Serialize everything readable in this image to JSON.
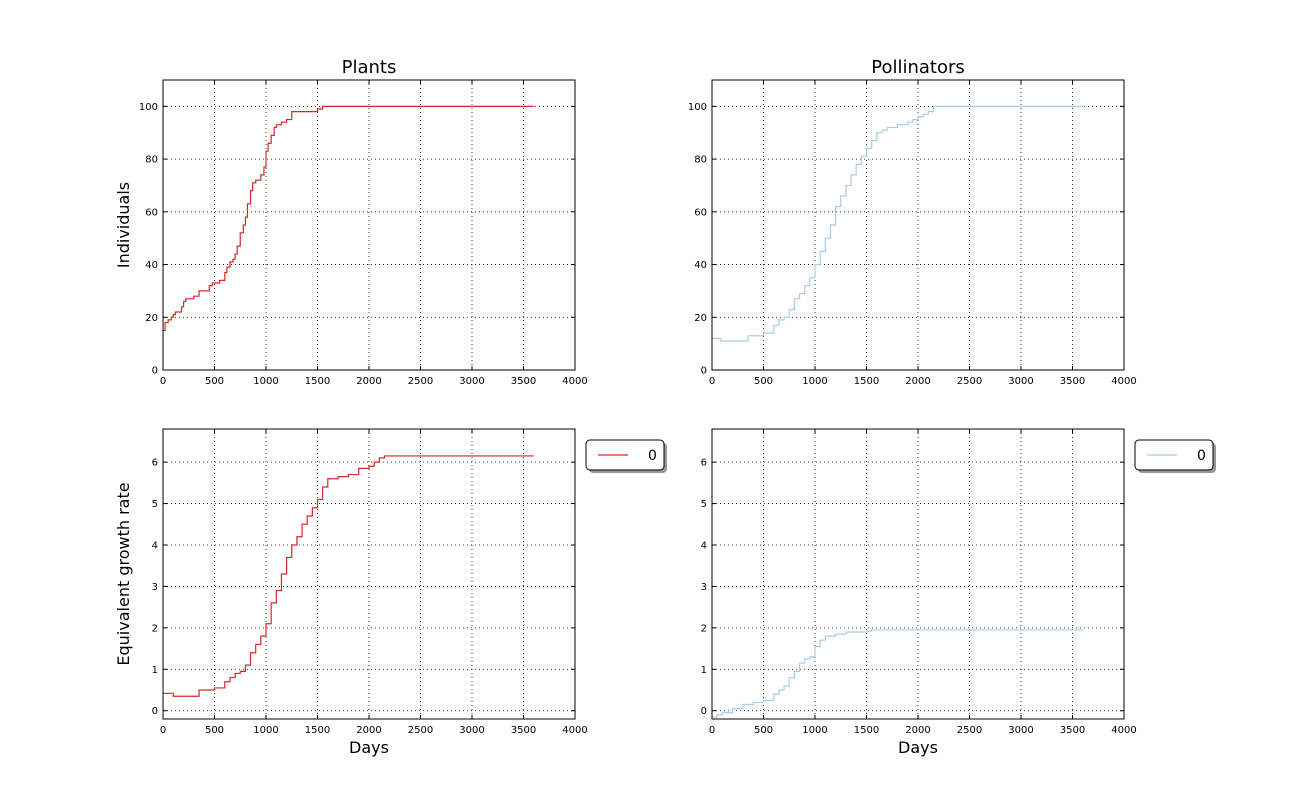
{
  "chart_data": [
    {
      "type": "line",
      "title": "Plants",
      "xlabel": "",
      "ylabel": "Individuals",
      "xlim": [
        0,
        4000
      ],
      "ylim": [
        0,
        110
      ],
      "xticks": [
        0,
        500,
        1000,
        1500,
        2000,
        2500,
        3000,
        3500,
        4000
      ],
      "yticks": [
        0,
        20,
        40,
        60,
        80,
        100
      ],
      "grid": true,
      "legend": null,
      "series": [
        {
          "color": "#d62728",
          "x": [
            0,
            20,
            50,
            80,
            100,
            120,
            150,
            180,
            200,
            220,
            250,
            300,
            350,
            400,
            450,
            480,
            500,
            550,
            600,
            620,
            650,
            680,
            700,
            720,
            750,
            780,
            800,
            820,
            850,
            870,
            900,
            950,
            980,
            1000,
            1020,
            1050,
            1080,
            1100,
            1150,
            1200,
            1250,
            1300,
            1400,
            1450,
            1500,
            1550,
            1600,
            2000,
            2500,
            3000,
            3600
          ],
          "y": [
            15,
            18,
            19,
            20,
            21,
            22,
            22,
            24,
            26,
            27,
            27,
            28,
            30,
            30,
            32,
            33,
            33,
            34,
            37,
            39,
            41,
            42,
            44,
            47,
            52,
            55,
            58,
            63,
            68,
            71,
            72,
            74,
            77,
            83,
            86,
            89,
            92,
            93,
            94,
            95,
            98,
            98,
            98,
            98,
            99,
            100,
            100,
            100,
            100,
            100,
            100
          ]
        }
      ]
    },
    {
      "type": "line",
      "title": "Pollinators",
      "xlabel": "",
      "ylabel": "",
      "xlim": [
        0,
        4000
      ],
      "ylim": [
        0,
        110
      ],
      "xticks": [
        0,
        500,
        1000,
        1500,
        2000,
        2500,
        3000,
        3500,
        4000
      ],
      "yticks": [
        0,
        20,
        40,
        60,
        80,
        100
      ],
      "grid": true,
      "legend": null,
      "series": [
        {
          "color": "#a6cee3",
          "x": [
            0,
            80,
            150,
            200,
            300,
            350,
            400,
            500,
            600,
            650,
            700,
            750,
            800,
            850,
            900,
            950,
            1000,
            1050,
            1100,
            1150,
            1200,
            1250,
            1300,
            1350,
            1400,
            1450,
            1500,
            1550,
            1600,
            1650,
            1700,
            1800,
            1900,
            1950,
            2000,
            2050,
            2100,
            2150,
            2500,
            3000,
            3600
          ],
          "y": [
            12,
            11,
            11,
            11,
            11,
            13,
            13,
            14,
            17,
            19,
            20,
            23,
            27,
            29,
            32,
            35,
            40,
            45,
            50,
            55,
            62,
            66,
            70,
            74,
            78,
            81,
            84,
            87,
            90,
            91,
            92,
            93,
            94,
            95,
            96,
            97,
            98,
            100,
            100,
            100,
            100
          ]
        }
      ]
    },
    {
      "type": "line",
      "title": "",
      "xlabel": "Days",
      "ylabel": "Equivalent growth rate",
      "xlim": [
        0,
        4000
      ],
      "ylim": [
        -0.2,
        6.8
      ],
      "xticks": [
        0,
        500,
        1000,
        1500,
        2000,
        2500,
        3000,
        3500,
        4000
      ],
      "yticks": [
        0,
        1,
        2,
        3,
        4,
        5,
        6
      ],
      "grid": true,
      "legend": {
        "position": "outside-right-top",
        "entries": [
          "0"
        ]
      },
      "series": [
        {
          "name": "0",
          "color": "#d62728",
          "x": [
            0,
            80,
            100,
            350,
            500,
            600,
            650,
            700,
            750,
            800,
            850,
            900,
            950,
            1000,
            1050,
            1100,
            1150,
            1200,
            1250,
            1300,
            1350,
            1400,
            1450,
            1500,
            1550,
            1600,
            1700,
            1800,
            1900,
            2000,
            2050,
            2100,
            2150,
            2500,
            3000,
            3600
          ],
          "y": [
            0.42,
            0.42,
            0.35,
            0.5,
            0.55,
            0.7,
            0.8,
            0.9,
            0.95,
            1.1,
            1.4,
            1.6,
            1.8,
            2.1,
            2.6,
            2.9,
            3.3,
            3.7,
            4.0,
            4.2,
            4.5,
            4.7,
            4.9,
            5.1,
            5.4,
            5.6,
            5.65,
            5.7,
            5.85,
            5.9,
            6.0,
            6.1,
            6.15,
            6.15,
            6.15,
            6.15
          ]
        }
      ]
    },
    {
      "type": "line",
      "title": "",
      "xlabel": "Days",
      "ylabel": "",
      "xlim": [
        0,
        4000
      ],
      "ylim": [
        -0.2,
        6.8
      ],
      "xticks": [
        0,
        500,
        1000,
        1500,
        2000,
        2500,
        3000,
        3500,
        4000
      ],
      "yticks": [
        0,
        1,
        2,
        3,
        4,
        5,
        6
      ],
      "grid": true,
      "legend": {
        "position": "outside-right-top",
        "entries": [
          "0"
        ]
      },
      "series": [
        {
          "name": "0",
          "color": "#a6cee3",
          "x": [
            0,
            50,
            100,
            200,
            300,
            400,
            500,
            600,
            650,
            700,
            750,
            800,
            850,
            900,
            950,
            1000,
            1050,
            1100,
            1200,
            1300,
            1400,
            1500,
            1550,
            2000,
            2500,
            3000,
            3600
          ],
          "y": [
            -0.15,
            -0.1,
            -0.05,
            0.05,
            0.15,
            0.2,
            0.25,
            0.4,
            0.5,
            0.6,
            0.8,
            0.95,
            1.15,
            1.25,
            1.3,
            1.55,
            1.7,
            1.8,
            1.85,
            1.9,
            1.9,
            1.92,
            1.95,
            1.95,
            1.95,
            1.95,
            1.95
          ]
        }
      ]
    }
  ]
}
